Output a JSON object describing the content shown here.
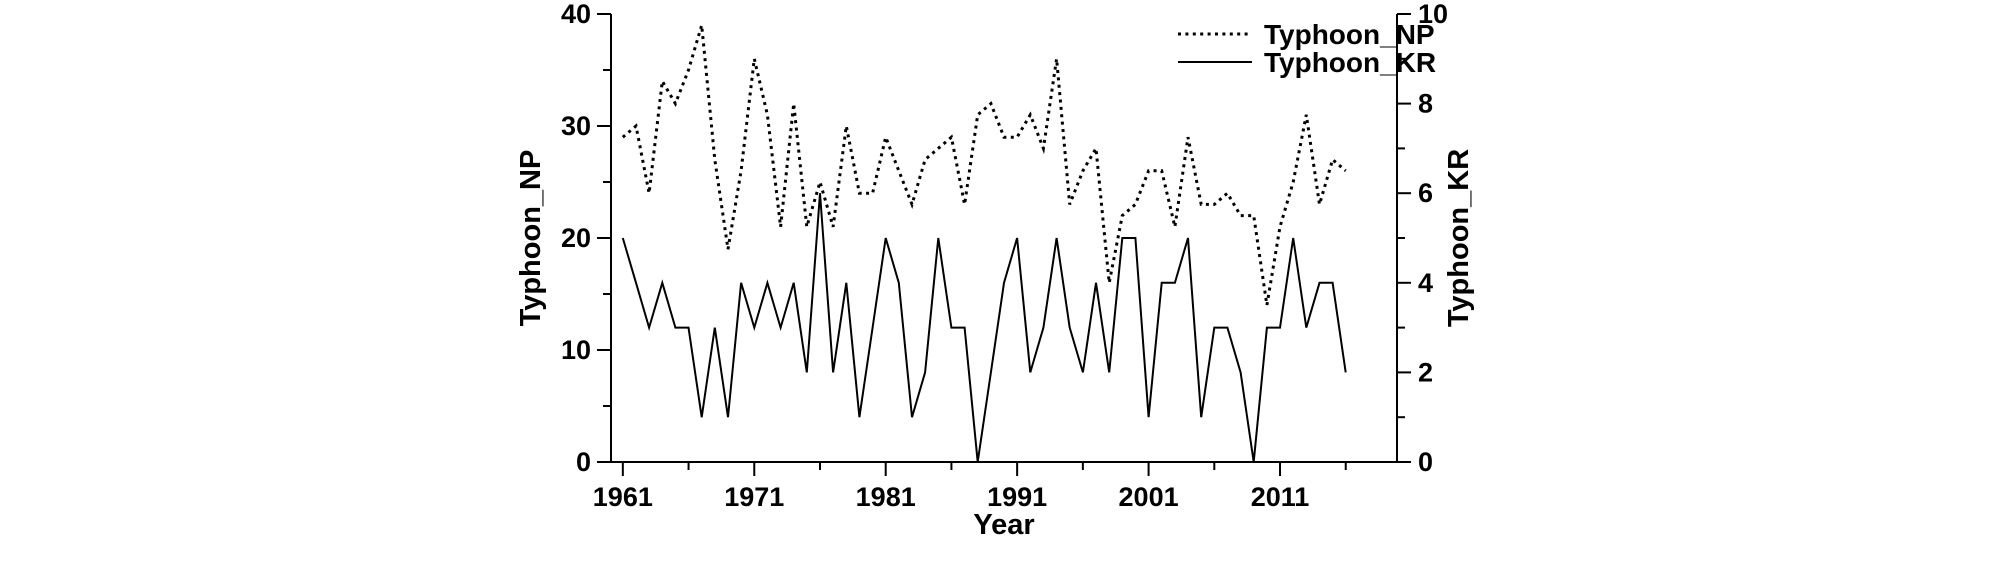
{
  "chart_data": {
    "type": "line",
    "title": "",
    "xlabel": "Year",
    "background_color": "#ffffff",
    "ink_color": "#000000",
    "x_range": [
      1960.1,
      2019.9
    ],
    "x_ticks_major": [
      1961,
      1971,
      1981,
      1991,
      2001,
      2011
    ],
    "x_ticks_minor": [
      1966,
      1976,
      1986,
      1996,
      2006,
      2016
    ],
    "left_axis": {
      "label": "Typhoon_NP",
      "range": [
        0,
        40
      ],
      "ticks_major": [
        0,
        10,
        20,
        30,
        40
      ],
      "ticks_minor": [
        5,
        15,
        25,
        35
      ]
    },
    "right_axis": {
      "label": "Typhoon_KR",
      "range": [
        0,
        10
      ],
      "ticks_major": [
        0,
        2,
        4,
        6,
        8,
        10
      ],
      "ticks_minor": [
        1,
        3,
        5,
        7,
        9
      ]
    },
    "years": [
      1961,
      1962,
      1963,
      1964,
      1965,
      1966,
      1967,
      1968,
      1969,
      1970,
      1971,
      1972,
      1973,
      1974,
      1975,
      1976,
      1977,
      1978,
      1979,
      1980,
      1981,
      1982,
      1983,
      1984,
      1985,
      1986,
      1987,
      1988,
      1989,
      1990,
      1991,
      1992,
      1993,
      1994,
      1995,
      1996,
      1997,
      1998,
      1999,
      2000,
      2001,
      2002,
      2003,
      2004,
      2005,
      2006,
      2007,
      2008,
      2009,
      2010,
      2011,
      2012,
      2013,
      2014,
      2015,
      2016
    ],
    "series": [
      {
        "name": "Typhoon_NP",
        "axis": "left",
        "style": "dotted",
        "values": [
          29,
          30,
          24,
          34,
          32,
          35,
          39,
          27,
          19,
          26,
          36,
          31,
          21,
          32,
          21,
          25,
          21,
          30,
          24,
          24,
          29,
          26,
          23,
          27,
          28,
          29,
          23,
          31,
          32,
          29,
          29,
          31,
          28,
          36,
          23,
          26,
          28,
          16,
          22,
          23,
          26,
          26,
          21,
          29,
          23,
          23,
          24,
          22,
          22,
          14,
          21,
          25,
          31,
          23,
          27,
          26
        ]
      },
      {
        "name": "Typhoon_KR",
        "axis": "right",
        "style": "solid",
        "values": [
          5,
          4,
          3,
          4,
          3,
          3,
          1,
          3,
          1,
          4,
          3,
          4,
          3,
          4,
          2,
          6,
          2,
          4,
          1,
          3,
          5,
          4,
          1,
          2,
          5,
          3,
          3,
          0,
          2,
          4,
          5,
          2,
          3,
          5,
          3,
          2,
          4,
          2,
          5,
          5,
          1,
          4,
          4,
          5,
          1,
          3,
          3,
          2,
          0,
          3,
          3,
          5,
          3,
          4,
          4,
          2
        ]
      }
    ],
    "legend": {
      "position": "top-right-inside",
      "entries": [
        "Typhoon_NP",
        "Typhoon_KR"
      ]
    }
  },
  "axes": {
    "left_label": "Typhoon_NP",
    "right_label": "Typhoon_KR",
    "x_label": "Year"
  },
  "legend": {
    "np_label": "Typhoon_NP",
    "kr_label": "Typhoon_KR"
  }
}
